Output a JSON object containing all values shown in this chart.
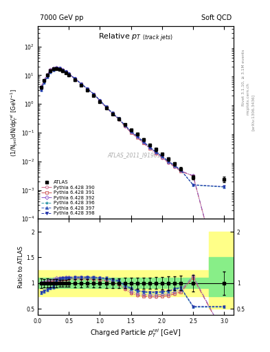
{
  "header_left": "7000 GeV pp",
  "header_right": "Soft QCD",
  "watermark": "ATLAS_2011_I919017",
  "xlabel": "Charged Particle $p_T^{rel}$ [GeV]",
  "ylabel": "(1/N$_{jet}$)dN/dp$^{rel}_T$ [GeV$^{-1}$]",
  "ratio_ylabel": "Ratio to ATLAS",
  "xlim": [
    0,
    3.15
  ],
  "ylim_main": [
    0.0001,
    500
  ],
  "x_data": [
    0.05,
    0.1,
    0.15,
    0.2,
    0.25,
    0.3,
    0.35,
    0.4,
    0.45,
    0.5,
    0.6,
    0.7,
    0.8,
    0.9,
    1.0,
    1.1,
    1.2,
    1.3,
    1.4,
    1.5,
    1.6,
    1.7,
    1.8,
    1.9,
    2.0,
    2.1,
    2.2,
    2.3,
    2.5,
    3.0
  ],
  "atlas_y": [
    3.8,
    6.5,
    10.0,
    14.5,
    16.5,
    17.0,
    16.0,
    14.0,
    12.0,
    10.0,
    6.8,
    4.5,
    3.0,
    2.0,
    1.2,
    0.72,
    0.45,
    0.3,
    0.19,
    0.125,
    0.088,
    0.058,
    0.038,
    0.026,
    0.018,
    0.012,
    0.0082,
    0.0055,
    0.0028,
    0.0024
  ],
  "atlas_yerr": [
    0.35,
    0.55,
    0.85,
    1.1,
    1.3,
    1.3,
    1.1,
    0.95,
    0.85,
    0.75,
    0.55,
    0.35,
    0.22,
    0.16,
    0.1,
    0.065,
    0.042,
    0.028,
    0.019,
    0.013,
    0.0092,
    0.0062,
    0.0042,
    0.003,
    0.0022,
    0.0016,
    0.0011,
    0.00078,
    0.00045,
    0.00055
  ],
  "mc_sets": [
    {
      "label": "Pythia 6.428 390",
      "color": "#cc6688",
      "marker": "o",
      "linestyle": "-.",
      "ratio": [
        1.0,
        1.0,
        1.01,
        1.02,
        1.03,
        1.05,
        1.06,
        1.07,
        1.07,
        1.08,
        1.08,
        1.08,
        1.08,
        1.07,
        1.06,
        1.04,
        1.01,
        0.97,
        0.88,
        0.8,
        0.76,
        0.74,
        0.73,
        0.73,
        0.74,
        0.75,
        0.79,
        0.82,
        1.1,
        0.0001
      ]
    },
    {
      "label": "Pythia 6.428 391",
      "color": "#cc5555",
      "marker": "s",
      "linestyle": "-.",
      "ratio": [
        1.0,
        1.01,
        1.02,
        1.03,
        1.04,
        1.06,
        1.07,
        1.08,
        1.08,
        1.09,
        1.09,
        1.09,
        1.09,
        1.08,
        1.07,
        1.05,
        1.02,
        0.98,
        0.89,
        0.81,
        0.77,
        0.75,
        0.74,
        0.74,
        0.75,
        0.76,
        0.8,
        0.83,
        1.11,
        0.0001
      ]
    },
    {
      "label": "Pythia 6.428 392",
      "color": "#8855cc",
      "marker": "D",
      "linestyle": "-.",
      "ratio": [
        1.01,
        1.03,
        1.05,
        1.07,
        1.08,
        1.1,
        1.11,
        1.11,
        1.12,
        1.12,
        1.12,
        1.12,
        1.12,
        1.11,
        1.1,
        1.08,
        1.05,
        1.01,
        0.92,
        0.84,
        0.8,
        0.78,
        0.77,
        0.77,
        0.78,
        0.79,
        0.83,
        0.86,
        1.14,
        0.0001
      ]
    },
    {
      "label": "Pythia 6.428 396",
      "color": "#3399aa",
      "marker": "*",
      "linestyle": "--",
      "ratio": [
        0.8,
        0.83,
        0.86,
        0.89,
        0.91,
        1.05,
        1.07,
        1.08,
        1.09,
        1.09,
        1.1,
        1.1,
        1.1,
        1.1,
        1.09,
        1.08,
        1.06,
        1.03,
        0.95,
        0.88,
        0.84,
        0.82,
        0.81,
        0.81,
        0.82,
        0.83,
        0.87,
        0.9,
        0.53,
        0.53
      ]
    },
    {
      "label": "Pythia 6.428 397",
      "color": "#3355bb",
      "marker": "^",
      "linestyle": "--",
      "ratio": [
        0.81,
        0.84,
        0.87,
        0.9,
        0.92,
        1.06,
        1.08,
        1.09,
        1.1,
        1.1,
        1.11,
        1.11,
        1.11,
        1.11,
        1.1,
        1.09,
        1.07,
        1.04,
        0.96,
        0.89,
        0.85,
        0.83,
        0.82,
        0.82,
        0.83,
        0.84,
        0.88,
        0.91,
        0.54,
        0.54
      ]
    },
    {
      "label": "Pythia 6.428 398",
      "color": "#2233aa",
      "marker": "v",
      "linestyle": "--",
      "ratio": [
        0.82,
        0.85,
        0.88,
        0.91,
        0.93,
        1.07,
        1.09,
        1.1,
        1.11,
        1.11,
        1.12,
        1.12,
        1.12,
        1.12,
        1.11,
        1.1,
        1.08,
        1.05,
        0.97,
        0.9,
        0.86,
        0.84,
        0.83,
        0.83,
        0.84,
        0.85,
        0.89,
        0.92,
        0.55,
        0.55
      ]
    }
  ],
  "band_x_break": 2.75,
  "band_yellow_lo": 0.75,
  "band_yellow_hi": 1.25,
  "band_green_lo": 0.9,
  "band_green_hi": 1.1,
  "band_yellow_lo_wide": 0.5,
  "band_yellow_hi_wide": 2.0,
  "band_green_lo_wide": 0.75,
  "band_green_hi_wide": 1.5
}
